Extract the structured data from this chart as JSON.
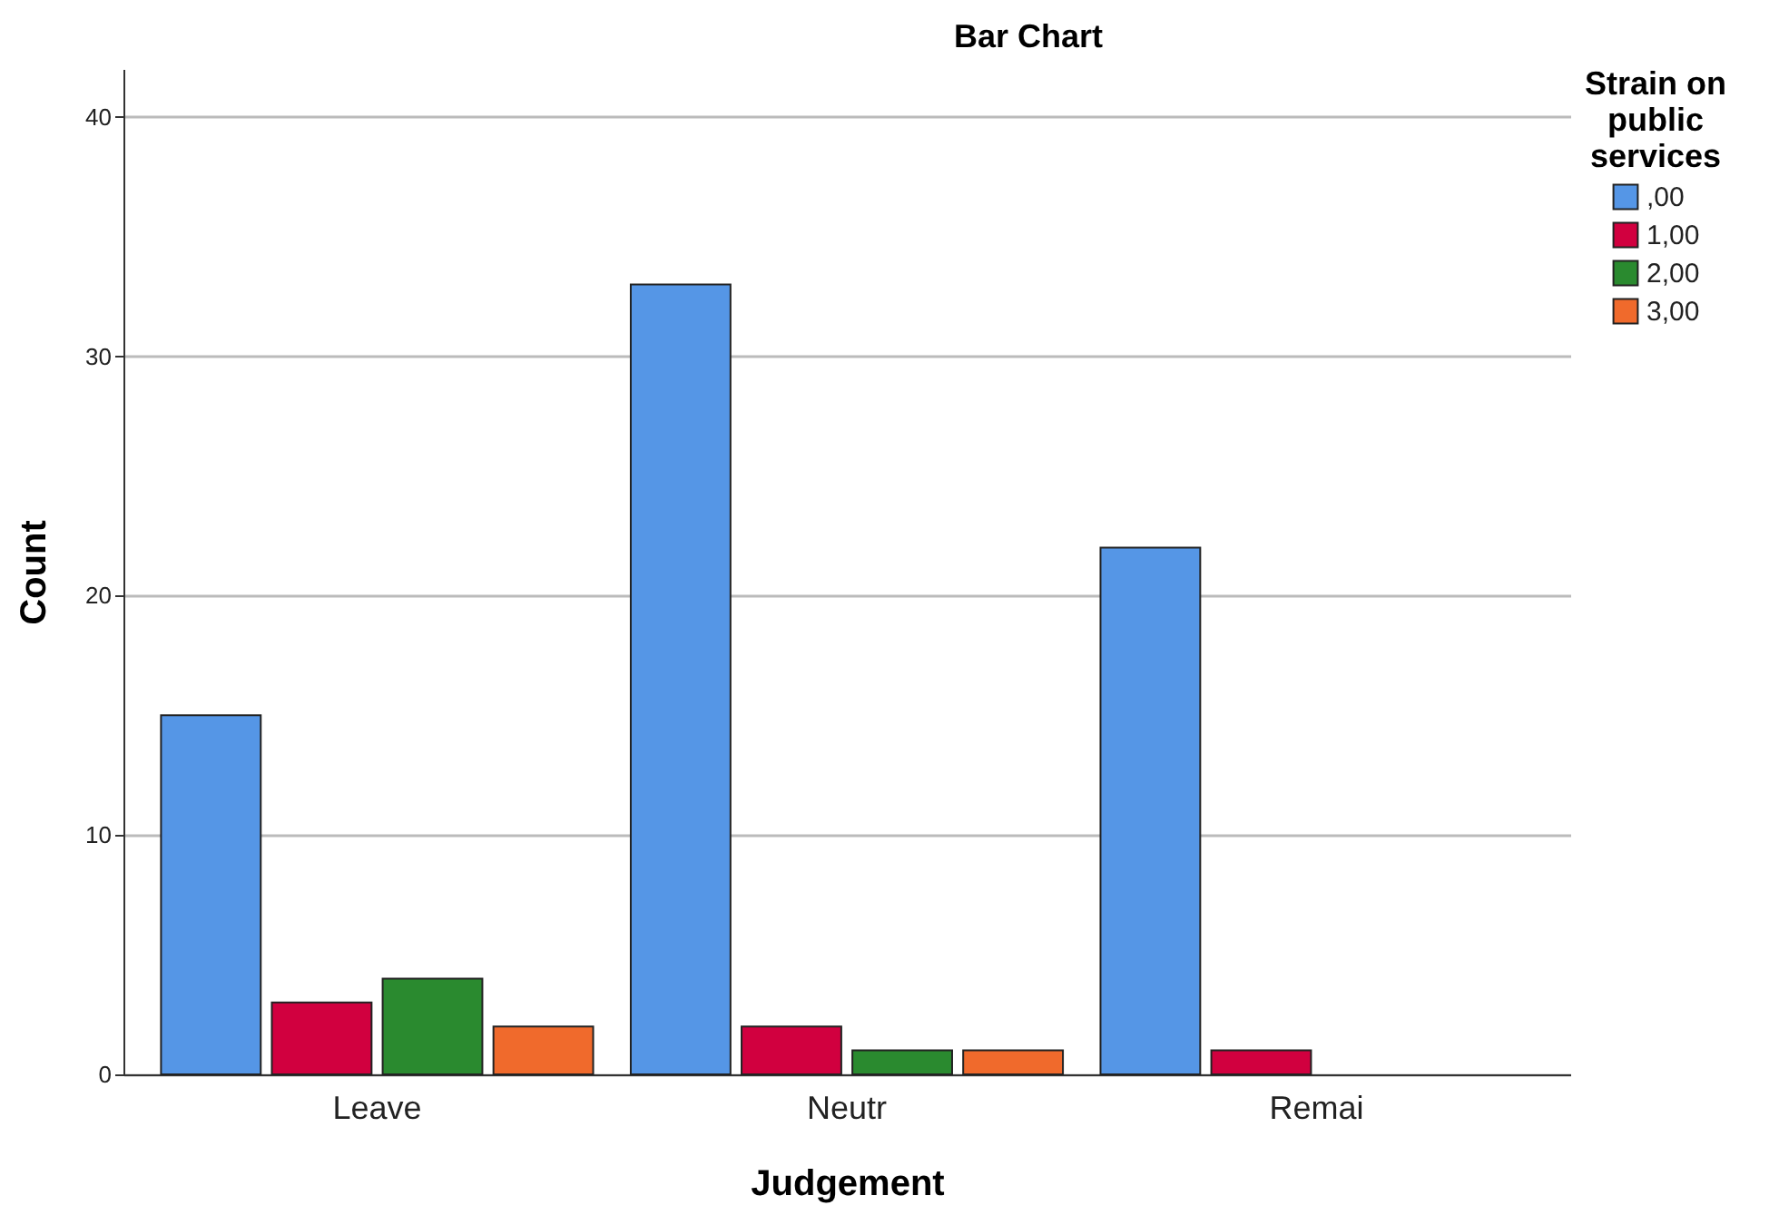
{
  "chart_data": {
    "type": "bar",
    "title": "Bar Chart",
    "xlabel": "Judgement",
    "ylabel": "Count",
    "legend_title": "Strain on public services",
    "categories": [
      "Leave",
      "Neutr",
      "Remai"
    ],
    "series": [
      {
        "name": ",00",
        "color": "#5596e6",
        "values": [
          15,
          33,
          22
        ]
      },
      {
        "name": "1,00",
        "color": "#d1003f",
        "values": [
          3,
          2,
          1
        ]
      },
      {
        "name": "2,00",
        "color": "#2a8a2f",
        "values": [
          4,
          1,
          null
        ]
      },
      {
        "name": "3,00",
        "color": "#f06a2c",
        "values": [
          2,
          1,
          null
        ]
      }
    ],
    "ylim": [
      0,
      42
    ],
    "yticks": [
      0,
      10,
      20,
      30,
      40
    ],
    "grid": "y",
    "legend": "top right"
  }
}
